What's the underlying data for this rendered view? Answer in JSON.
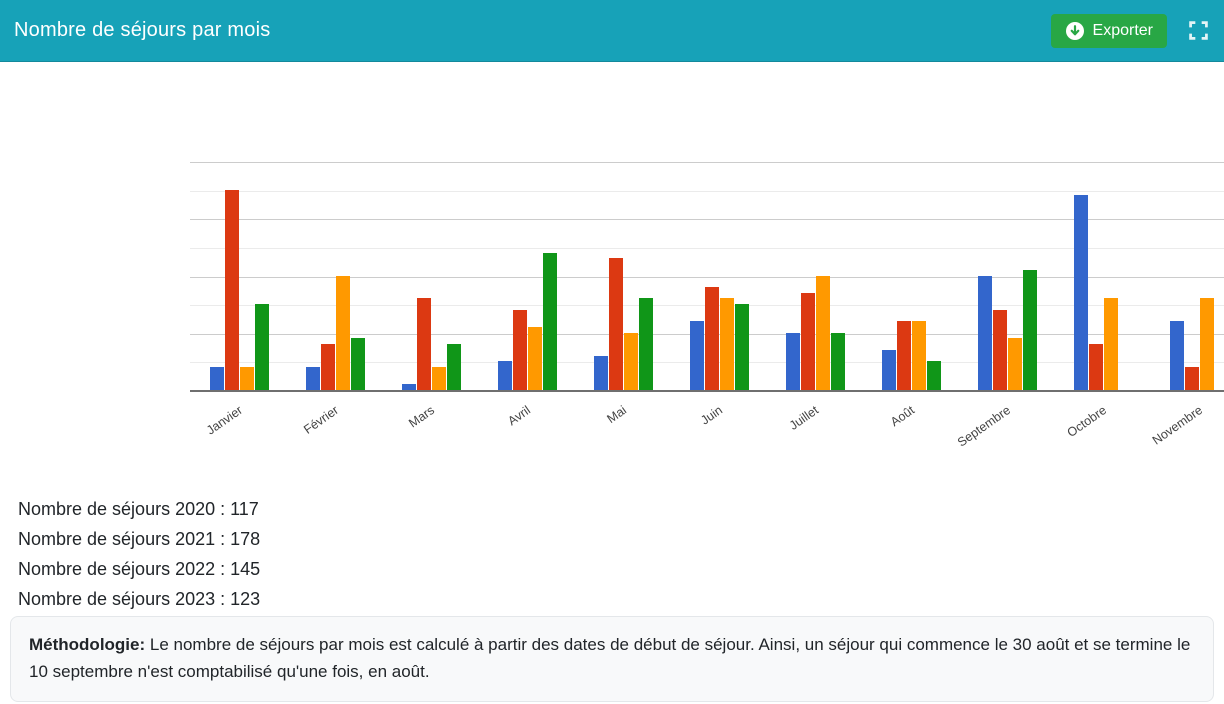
{
  "header": {
    "title": "Nombre de séjours par mois",
    "export_button": {
      "label": "Exporter"
    },
    "colors": {
      "header_bg": "#17a2b8",
      "export_bg": "#28a745",
      "text": "#ffffff"
    }
  },
  "chart_data": {
    "type": "bar",
    "title": "Nombre de séjours par mois",
    "categories": [
      "Janvier",
      "Février",
      "Mars",
      "Avril",
      "Mai",
      "Juin",
      "Juillet",
      "Août",
      "Septembre",
      "Octobre",
      "Novembre"
    ],
    "series": [
      {
        "name": "2020",
        "color": "#3366cc",
        "values": [
          4,
          4,
          1,
          5,
          6,
          12,
          10,
          7,
          20,
          34,
          12
        ]
      },
      {
        "name": "2021",
        "color": "#dc3912",
        "values": [
          35,
          8,
          16,
          14,
          23,
          18,
          17,
          12,
          14,
          8,
          4
        ]
      },
      {
        "name": "2022",
        "color": "#ff9900",
        "values": [
          4,
          20,
          4,
          11,
          10,
          16,
          20,
          12,
          9,
          16,
          16
        ]
      },
      {
        "name": "2023",
        "color": "#109618",
        "values": [
          15,
          9,
          8,
          24,
          16,
          15,
          10,
          5,
          21,
          0,
          0
        ]
      }
    ],
    "xlabel": "",
    "ylabel": "",
    "ylim": [
      0,
      40
    ],
    "legend": "none",
    "y_axis_labels": "hidden",
    "x_label_angle": -35,
    "grid": {
      "major_step": 10,
      "minor_step": 5,
      "major_color": "#cccccc",
      "minor_color": "#ebebeb",
      "baseline_color": "#6f6f6f"
    }
  },
  "summary": {
    "lines": [
      "Nombre de séjours 2020 : 117",
      "Nombre de séjours 2021 : 178",
      "Nombre de séjours 2022 : 145",
      "Nombre de séjours 2023 : 123"
    ]
  },
  "methodology": {
    "label": "Méthodologie:",
    "text": "Le nombre de séjours par mois est calculé à partir des dates de début de séjour. Ainsi, un séjour qui commence le 30 août et se termine le 10 septembre n'est comptabilisé qu'une fois, en août."
  }
}
